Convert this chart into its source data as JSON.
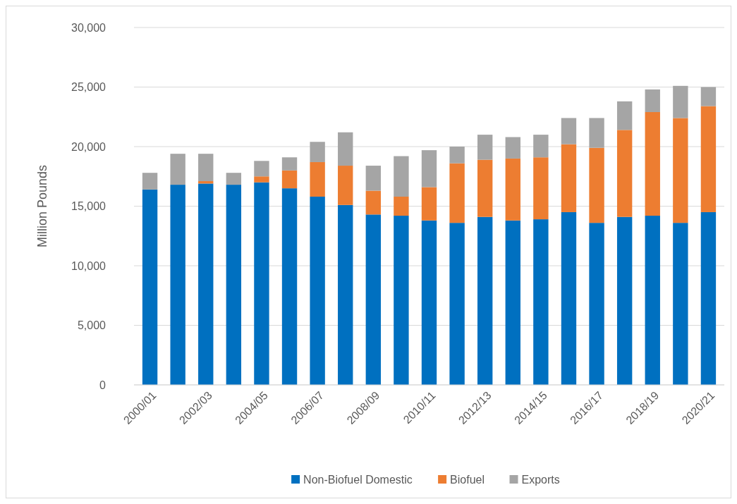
{
  "chart_data": {
    "type": "bar",
    "stacked": true,
    "ylabel": "Million Pounds",
    "categories": [
      "2000/01",
      null,
      "2002/03",
      null,
      "2004/05",
      null,
      "2006/07",
      null,
      "2008/09",
      null,
      "2010/11",
      null,
      "2012/13",
      null,
      "2014/15",
      null,
      "2016/17",
      null,
      "2018/19",
      null,
      "2020/21"
    ],
    "series": [
      {
        "name": "Non-Biofuel Domestic",
        "color": "#0070c0",
        "values": [
          16400,
          16800,
          16900,
          16800,
          17000,
          16500,
          15800,
          15100,
          14300,
          14200,
          13800,
          13600,
          14100,
          13800,
          13900,
          14500,
          13600,
          14100,
          14200,
          13600,
          14500
        ]
      },
      {
        "name": "Biofuel",
        "color": "#ed7d31",
        "values": [
          0,
          0,
          200,
          0,
          500,
          1500,
          2900,
          3300,
          2000,
          1600,
          2800,
          5000,
          4800,
          5200,
          5200,
          5700,
          6300,
          7300,
          8700,
          8800,
          8900
        ]
      },
      {
        "name": "Exports",
        "color": "#a5a5a5",
        "values": [
          1400,
          2600,
          2300,
          1000,
          1300,
          1100,
          1700,
          2800,
          2100,
          3400,
          3100,
          1400,
          2100,
          1800,
          1900,
          2200,
          2500,
          2400,
          1900,
          2700,
          1600
        ]
      }
    ],
    "ylim": [
      0,
      30000
    ],
    "yticks": [
      {
        "value": 0,
        "label": "0"
      },
      {
        "value": 5000,
        "label": "5,000"
      },
      {
        "value": 10000,
        "label": "10,000"
      },
      {
        "value": 15000,
        "label": "15,000"
      },
      {
        "value": 20000,
        "label": "20,000"
      },
      {
        "value": 25000,
        "label": "25,000"
      },
      {
        "value": 30000,
        "label": "30,000"
      }
    ],
    "grid": "y",
    "legend": "bottom"
  }
}
